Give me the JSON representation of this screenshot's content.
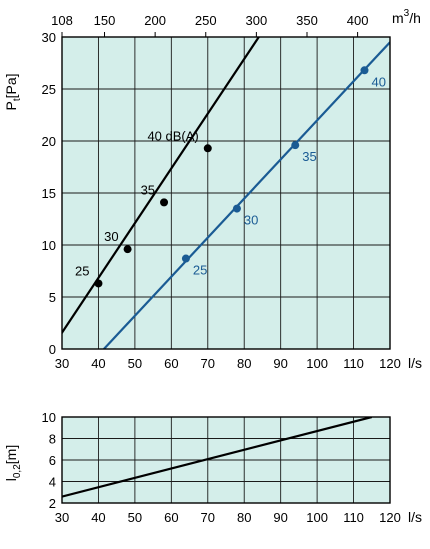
{
  "chart_data": [
    {
      "type": "line",
      "title": "",
      "xlabel": "l/s",
      "ylabel_main": "P",
      "ylabel_sub": "t",
      "ylabel_unit": "[Pa]",
      "xlim": [
        30,
        120
      ],
      "ylim": [
        0,
        30
      ],
      "x_ticks": [
        "30",
        "40",
        "50",
        "60",
        "70",
        "80",
        "90",
        "100",
        "110",
        "120"
      ],
      "y_ticks": [
        "0",
        "5",
        "10",
        "15",
        "20",
        "25",
        "30"
      ],
      "top_axis": {
        "label_main": "m",
        "label_sup": "3",
        "label_rest": "/h",
        "values": [
          108,
          150,
          200,
          250,
          300,
          350,
          400
        ],
        "tick_labels": [
          "108",
          "150",
          "200",
          "250",
          "300",
          "350",
          "400"
        ]
      },
      "grid": true,
      "background_color": "#d4eeea",
      "series": [
        {
          "color": "#000000",
          "x": [
            27,
            84
          ],
          "y": [
            0,
            30
          ],
          "markers": [
            {
              "x": 40,
              "y": 6.3,
              "label": "25"
            },
            {
              "x": 48,
              "y": 9.6,
              "label": "30"
            },
            {
              "x": 58,
              "y": 14.1,
              "label": "35"
            },
            {
              "x": 70,
              "y": 19.3,
              "label": "40 dB(A)"
            }
          ]
        },
        {
          "color": "#1a5b94",
          "x": [
            41.5,
            120
          ],
          "y": [
            0,
            29.5
          ],
          "markers": [
            {
              "x": 64,
              "y": 8.7,
              "label": "25"
            },
            {
              "x": 78,
              "y": 13.5,
              "label": "30"
            },
            {
              "x": 94,
              "y": 19.6,
              "label": "35"
            },
            {
              "x": 113,
              "y": 26.8,
              "label": "40"
            }
          ]
        }
      ]
    },
    {
      "type": "line",
      "title": "",
      "xlabel": "l/s",
      "ylabel_main": "l",
      "ylabel_sub": "0,2",
      "ylabel_unit": "[m]",
      "xlim": [
        30,
        120
      ],
      "ylim": [
        2,
        10
      ],
      "x_ticks": [
        "30",
        "40",
        "50",
        "60",
        "70",
        "80",
        "90",
        "100",
        "110",
        "120"
      ],
      "y_ticks": [
        "2",
        "4",
        "6",
        "8",
        "10"
      ],
      "grid": true,
      "background_color": "#d4eeea",
      "series": [
        {
          "color": "#000000",
          "x": [
            30,
            115
          ],
          "y": [
            2.6,
            10
          ]
        }
      ]
    }
  ]
}
